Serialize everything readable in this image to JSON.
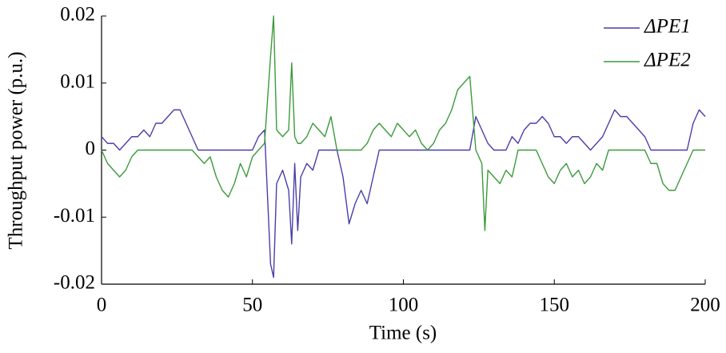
{
  "chart_data": {
    "type": "line",
    "x_label": "Time (s)",
    "y_label": "Throughput power (p.u.)",
    "x": [
      0,
      2,
      4,
      6,
      8,
      10,
      12,
      14,
      16,
      18,
      20,
      22,
      24,
      26,
      28,
      30,
      32,
      34,
      36,
      38,
      40,
      42,
      44,
      46,
      48,
      50,
      52,
      54,
      56,
      57,
      58,
      60,
      62,
      63,
      64,
      65,
      66,
      68,
      70,
      72,
      74,
      76,
      78,
      80,
      82,
      84,
      86,
      88,
      90,
      92,
      94,
      96,
      98,
      100,
      102,
      104,
      106,
      108,
      110,
      112,
      114,
      116,
      118,
      120,
      122,
      124,
      126,
      127,
      128,
      130,
      132,
      134,
      136,
      138,
      140,
      142,
      144,
      146,
      148,
      150,
      152,
      154,
      156,
      158,
      160,
      162,
      164,
      166,
      168,
      170,
      172,
      174,
      176,
      178,
      180,
      182,
      184,
      186,
      188,
      190,
      192,
      194,
      196,
      198,
      200
    ],
    "series": [
      {
        "name": "ΔPE1",
        "color": "#4a3fa8",
        "values": [
          0.002,
          0.001,
          0.001,
          0,
          0.001,
          0.002,
          0.002,
          0.003,
          0.002,
          0.004,
          0.004,
          0.005,
          0.006,
          0.006,
          0.004,
          0.002,
          0,
          0,
          0,
          0,
          0,
          0,
          0,
          0,
          0,
          0,
          0.002,
          0.003,
          -0.017,
          -0.019,
          -0.005,
          -0.003,
          -0.006,
          -0.014,
          -0.002,
          -0.012,
          -0.004,
          -0.002,
          -0.003,
          0,
          0,
          0,
          0,
          -0.004,
          -0.011,
          -0.008,
          -0.006,
          -0.008,
          -0.004,
          0,
          0,
          0,
          0,
          0,
          0,
          0,
          0,
          0,
          0,
          0,
          0,
          0,
          0,
          0,
          0,
          0.005,
          0.003,
          0.002,
          0.001,
          0,
          0,
          0,
          0.002,
          0.001,
          0.003,
          0.004,
          0.004,
          0.005,
          0.004,
          0.002,
          0.002,
          0.001,
          0.002,
          0.002,
          0.001,
          0,
          0.001,
          0.002,
          0.004,
          0.006,
          0.005,
          0.005,
          0.004,
          0.003,
          0.002,
          0,
          0,
          0,
          0,
          0,
          0,
          0,
          0.004,
          0.006,
          0.005
        ]
      },
      {
        "name": "ΔPE2",
        "color": "#3c9a3c",
        "values": [
          0,
          -0.002,
          -0.003,
          -0.004,
          -0.003,
          -0.001,
          0,
          0,
          0,
          0,
          0,
          0,
          0,
          0,
          0,
          0,
          -0.001,
          -0.002,
          -0.001,
          -0.004,
          -0.006,
          -0.007,
          -0.005,
          -0.002,
          -0.004,
          -0.001,
          0,
          0.001,
          0.014,
          0.02,
          0.003,
          0.002,
          0.003,
          0.013,
          0.002,
          0.001,
          0.001,
          0.002,
          0.004,
          0.003,
          0.002,
          0.005,
          0,
          0,
          0,
          0,
          0,
          0.001,
          0.003,
          0.004,
          0.003,
          0.002,
          0.004,
          0.003,
          0.002,
          0.003,
          0.001,
          0,
          0.001,
          0.003,
          0.004,
          0.006,
          0.009,
          0.01,
          0.011,
          0,
          -0.002,
          -0.012,
          -0.003,
          -0.004,
          -0.005,
          -0.003,
          -0.004,
          0,
          0,
          0,
          0,
          -0.002,
          -0.004,
          -0.005,
          -0.003,
          -0.002,
          -0.004,
          -0.003,
          -0.005,
          -0.004,
          -0.002,
          -0.003,
          0,
          0,
          0,
          0,
          0,
          0,
          0,
          -0.002,
          -0.002,
          -0.005,
          -0.006,
          -0.006,
          -0.004,
          -0.002,
          0,
          0,
          0
        ]
      }
    ],
    "xlim": [
      0,
      200
    ],
    "xticks": [
      0,
      50,
      100,
      150,
      200
    ],
    "ylim": [
      -0.02,
      0.02
    ],
    "yticks": [
      -0.02,
      -0.01,
      0,
      0.01,
      0.02
    ],
    "legend": "upper right"
  }
}
